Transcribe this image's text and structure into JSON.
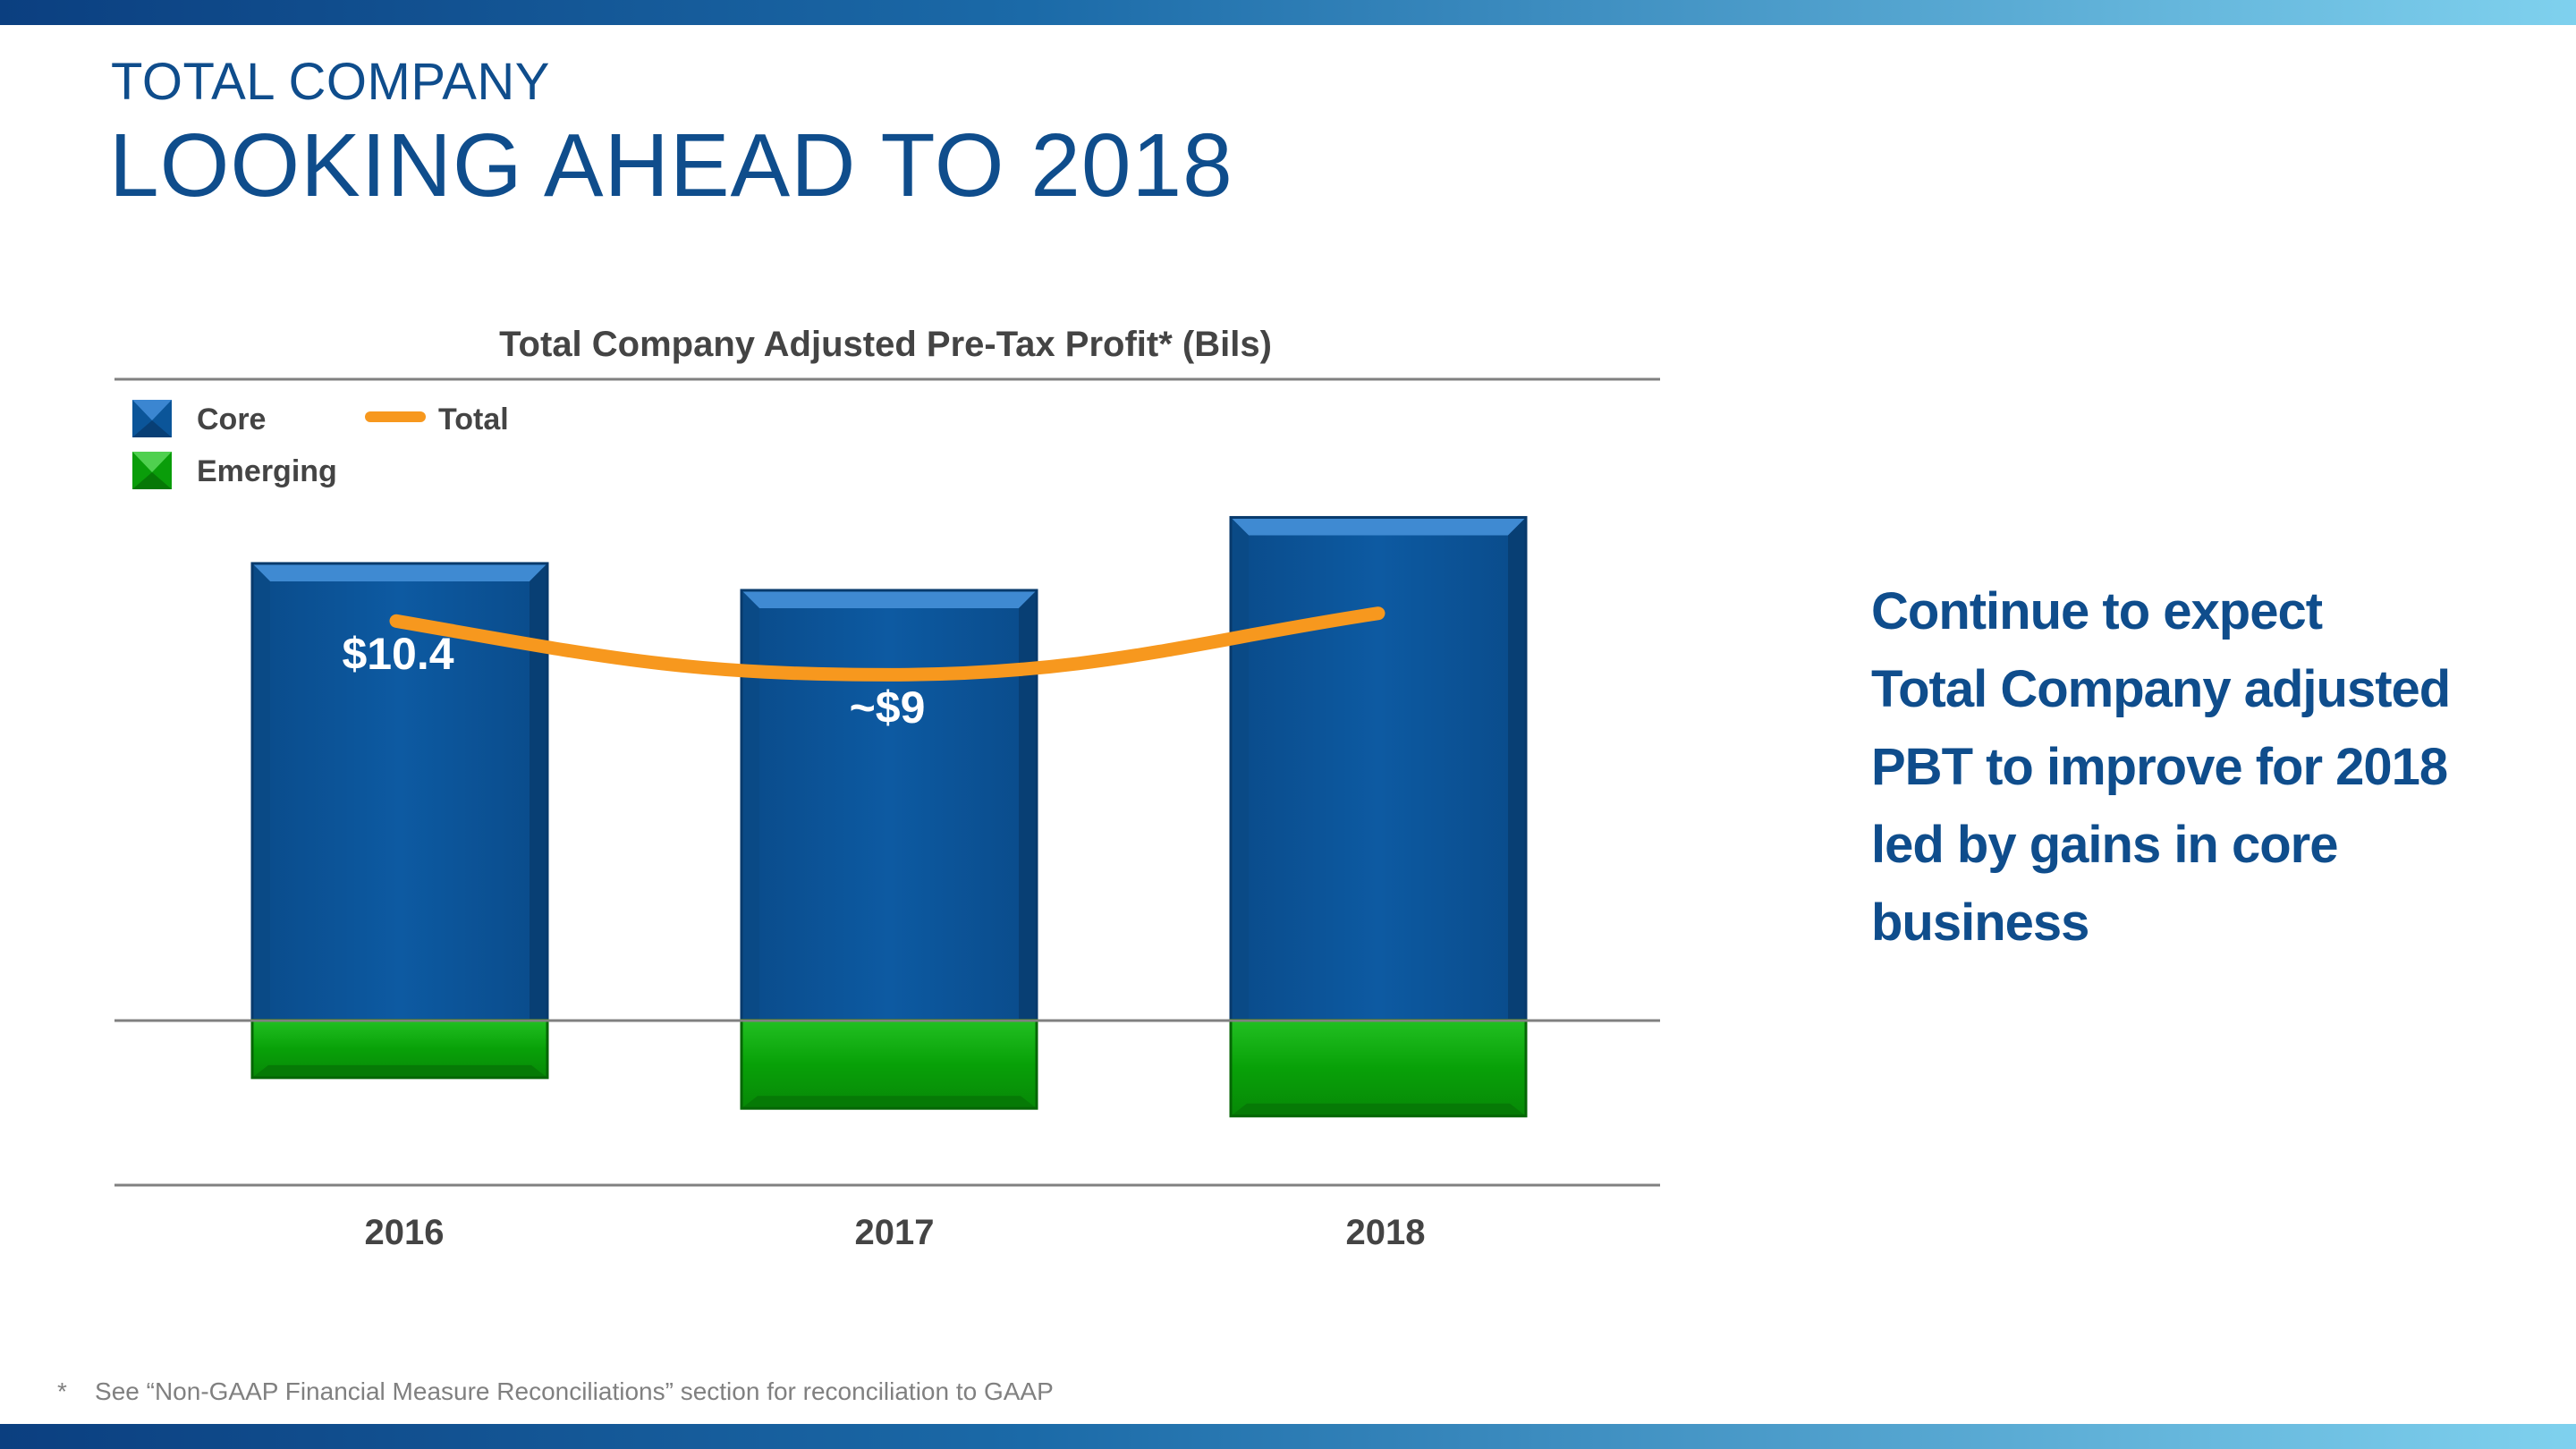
{
  "header": {
    "kicker": "TOTAL COMPANY",
    "title": "LOOKING AHEAD TO 2018"
  },
  "colors": {
    "band_dark": "#0b3f80",
    "band_light": "#7fd1ee",
    "title_blue": "#0f4d8c",
    "core": "#0b5599",
    "emerging": "#0a9d0a",
    "total": "#f7981e"
  },
  "chart_data": {
    "type": "bar",
    "title": "Total Company Adjusted Pre-Tax Profit* (Bils)",
    "categories": [
      "2016",
      "2017",
      "2018"
    ],
    "stacked": true,
    "series": [
      {
        "name": "Core",
        "values": [
          11.9,
          11.2,
          13.1
        ]
      },
      {
        "name": "Emerging",
        "values": [
          -1.5,
          -2.3,
          -2.5
        ]
      },
      {
        "name": "Total",
        "type": "line",
        "values": [
          10.4,
          9.0,
          10.6
        ]
      }
    ],
    "data_labels": [
      "$10.4",
      "~$9",
      ""
    ],
    "ylim": [
      -4.3,
      16.7
    ],
    "legend": {
      "placement": "top-left",
      "items": [
        "Core",
        "Total",
        "Emerging"
      ]
    },
    "grid": false
  },
  "callout": {
    "lines": [
      "Continue to expect",
      "Total Company adjusted",
      "PBT to improve for 2018",
      "led by gains in core",
      "business"
    ]
  },
  "footnote": {
    "marker": "*",
    "text": "See “Non-GAAP Financial Measure Reconciliations” section for reconciliation to GAAP"
  }
}
